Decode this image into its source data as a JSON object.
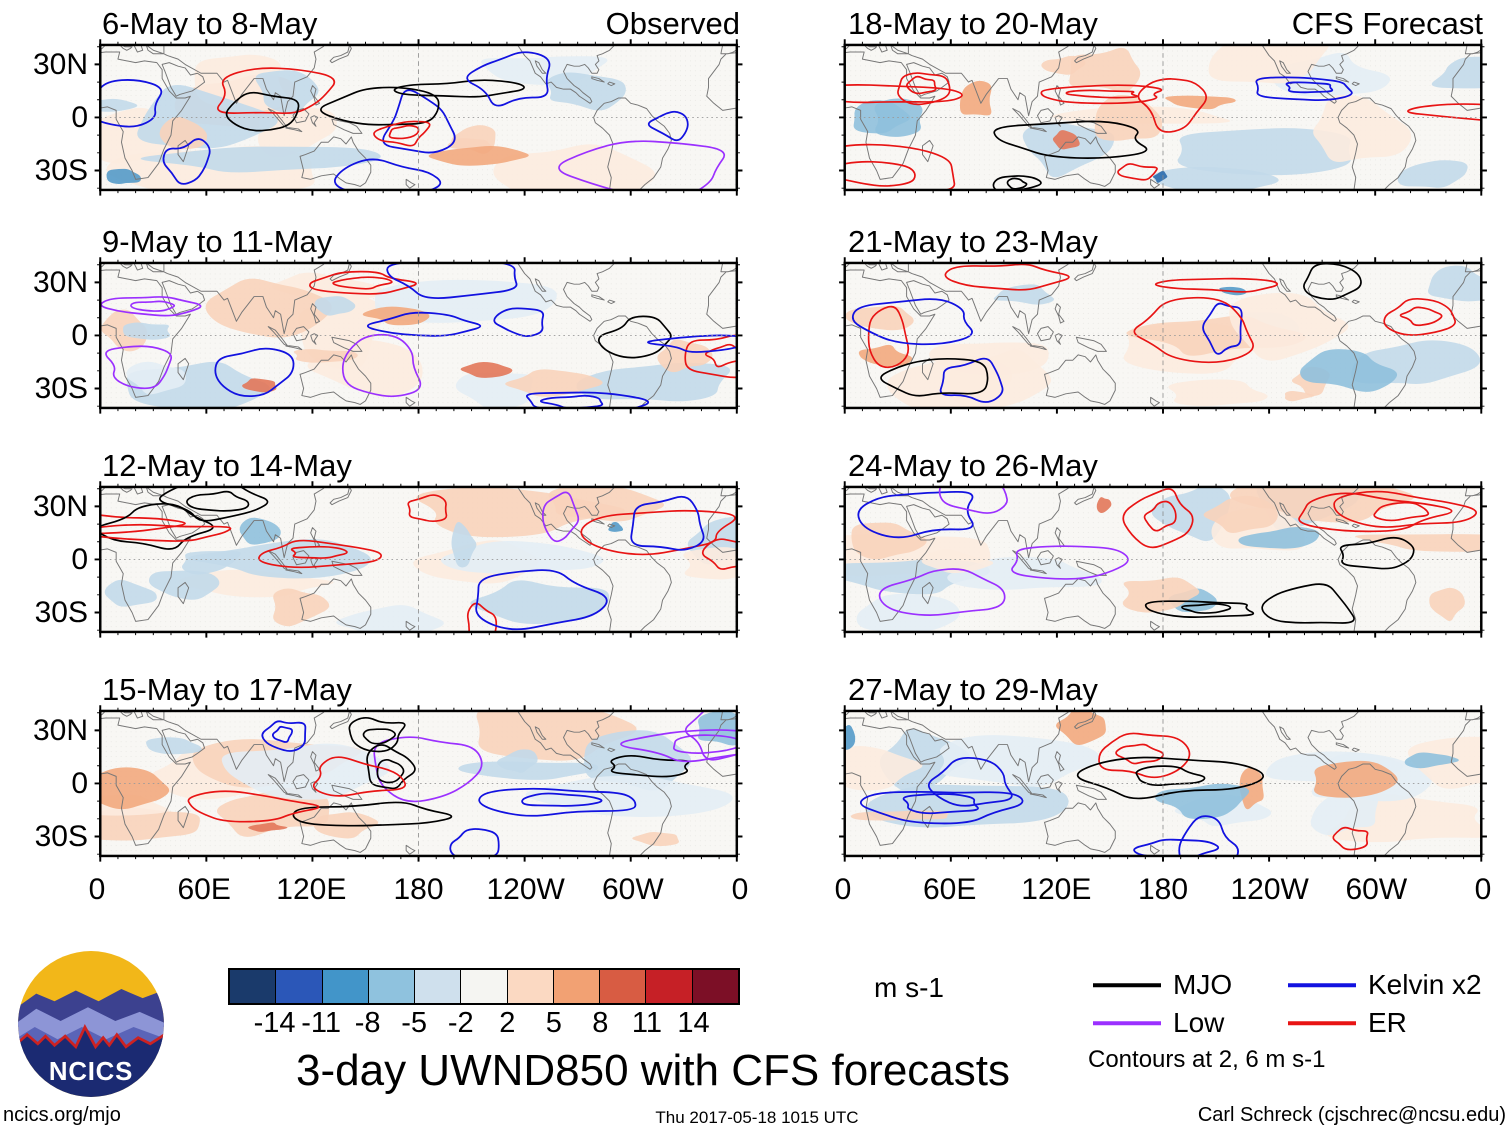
{
  "header": {
    "observed_label": "Observed",
    "forecast_label": "CFS Forecast"
  },
  "panels": [
    {
      "title": "6-May to 8-May",
      "column": "Observed"
    },
    {
      "title": "9-May to 11-May",
      "column": "Observed"
    },
    {
      "title": "12-May to 14-May",
      "column": "Observed"
    },
    {
      "title": "15-May to 17-May",
      "column": "Observed"
    },
    {
      "title": "18-May to 20-May",
      "column": "CFS Forecast"
    },
    {
      "title": "21-May to 23-May",
      "column": "CFS Forecast"
    },
    {
      "title": "24-May to 26-May",
      "column": "CFS Forecast"
    },
    {
      "title": "27-May to 29-May",
      "column": "CFS Forecast"
    }
  ],
  "axes": {
    "y_ticks": [
      "30N",
      "0",
      "30S"
    ],
    "x_ticks": [
      "0",
      "60E",
      "120E",
      "180",
      "120W",
      "60W",
      "0"
    ]
  },
  "colorbar": {
    "tick_labels": [
      "-14",
      "-11",
      "-8",
      "-5",
      "-2",
      "2",
      "5",
      "8",
      "11",
      "14"
    ],
    "colors": [
      "#1a3a6b",
      "#2b57b8",
      "#4295c9",
      "#8fc2de",
      "#cfe0ed",
      "#f5f5f2",
      "#fbd9c2",
      "#f2a173",
      "#d85c43",
      "#c62026",
      "#7c0f26"
    ],
    "units": "m s-1"
  },
  "legend": {
    "items": [
      {
        "label": "MJO",
        "color": "#000000"
      },
      {
        "label": "Low",
        "color": "#9b30ff"
      },
      {
        "label": "Kelvin x2",
        "color": "#1212e0"
      },
      {
        "label": "ER",
        "color": "#e81414"
      }
    ],
    "note": "Contours at 2, 6 m s-1"
  },
  "title": "3-day UWND850 with CFS forecasts",
  "logo": {
    "text": "NCICS"
  },
  "footer": {
    "left": "ncics.org/mjo",
    "center": "Thu 2017-05-18 1015 UTC",
    "right": "Carl Schreck (cjschrec@ncsu.edu)"
  },
  "chart_data": {
    "type": "heatmap",
    "description": "Eight longitude-latitude map panels of 3-day mean 850 hPa zonal wind anomalies. Shading shows anomaly magnitude (m s-1); colored contours show wave-filtered anomalies (MJO black, Low purple, Kelvin x2 blue, ER red) at 2 and 6 m s-1. Left column observed, right column CFS forecast.",
    "panel_titles": [
      "6-May to 8-May",
      "9-May to 11-May",
      "12-May to 14-May",
      "15-May to 17-May",
      "18-May to 20-May",
      "21-May to 23-May",
      "24-May to 26-May",
      "27-May to 29-May"
    ],
    "columns": [
      "Observed",
      "CFS Forecast"
    ],
    "x_axis": {
      "label": "longitude",
      "ticks": [
        "0",
        "60E",
        "120E",
        "180",
        "120W",
        "60W",
        "0"
      ],
      "range_deg": [
        0,
        360
      ]
    },
    "y_axis": {
      "label": "latitude",
      "ticks": [
        "30N",
        "0",
        "30S"
      ],
      "range_deg": [
        -41,
        41
      ]
    },
    "shading_levels_m_s": [
      -14,
      -11,
      -8,
      -5,
      -2,
      2,
      5,
      8,
      11,
      14
    ],
    "contour_levels_m_s": [
      2,
      6
    ],
    "contour_series": [
      "MJO",
      "Low",
      "Kelvin x2",
      "ER"
    ],
    "units": "m s-1"
  }
}
